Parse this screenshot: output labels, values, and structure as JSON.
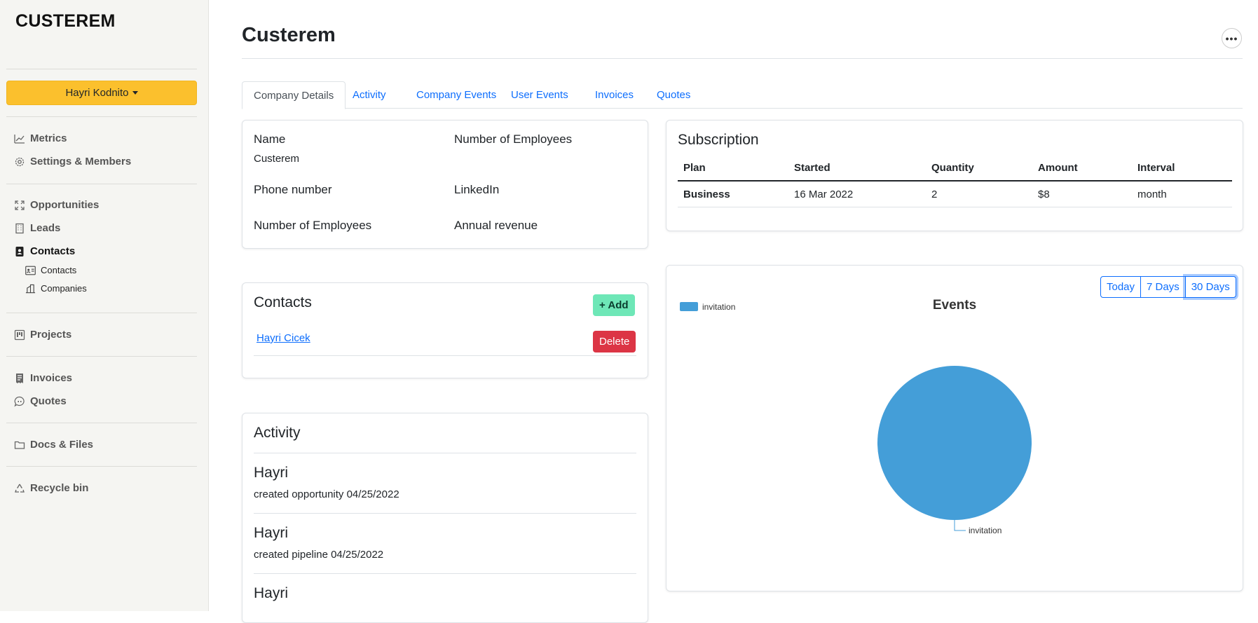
{
  "sidebar": {
    "brand": "CUSTEREM",
    "user_menu": "Hayri Kodnito",
    "items": [
      {
        "label": "Metrics",
        "icon": "chart-line-icon"
      },
      {
        "label": "Settings & Members",
        "icon": "gear-icon"
      },
      {
        "label": "Opportunities",
        "icon": "expand-icon"
      },
      {
        "label": "Leads",
        "icon": "building-icon"
      },
      {
        "label": "Contacts",
        "icon": "contact-book-icon"
      },
      {
        "label": "Projects",
        "icon": "kanban-icon"
      },
      {
        "label": "Invoices",
        "icon": "receipt-icon"
      },
      {
        "label": "Quotes",
        "icon": "chat-quote-icon"
      },
      {
        "label": "Docs & Files",
        "icon": "folder-icon"
      },
      {
        "label": "Recycle bin",
        "icon": "recycle-icon"
      }
    ],
    "sub_items": [
      {
        "label": "Contacts",
        "icon": "person-vcard-icon"
      },
      {
        "label": "Companies",
        "icon": "buildings-icon"
      }
    ]
  },
  "header": {
    "title": "Custerem"
  },
  "tabs": [
    "Company Details",
    "Activity",
    "Company Events",
    "User Events",
    "Invoices",
    "Quotes"
  ],
  "details": {
    "name_label": "Name",
    "name_value": "Custerem",
    "employees_label_1": "Number of Employees",
    "phone_label": "Phone number",
    "linkedin_label": "LinkedIn",
    "employees_label_2": "Number of Employees",
    "revenue_label": "Annual revenue"
  },
  "contacts": {
    "title": "Contacts",
    "add_label": "+ Add",
    "items": [
      {
        "name": "Hayri Cicek",
        "delete_label": "Delete"
      }
    ]
  },
  "activity": {
    "title": "Activity",
    "items": [
      {
        "user": "Hayri",
        "desc": "created opportunity 04/25/2022"
      },
      {
        "user": "Hayri",
        "desc": "created pipeline 04/25/2022"
      },
      {
        "user": "Hayri",
        "desc": ""
      }
    ]
  },
  "subscription": {
    "title": "Subscription",
    "columns": [
      "Plan",
      "Started",
      "Quantity",
      "Amount",
      "Interval"
    ],
    "rows": [
      [
        "Business",
        "16 Mar 2022",
        "2",
        "$8",
        "month"
      ]
    ]
  },
  "events": {
    "ranges": [
      "Today",
      "7 Days",
      "30 Days"
    ],
    "active_range": "30 Days",
    "colors": {
      "accent": "#0d6efd",
      "pie": "#449ed8"
    }
  },
  "chart_data": {
    "type": "pie",
    "title": "Events",
    "categories": [
      "invitation"
    ],
    "values": [
      1
    ],
    "legend": "top-left"
  }
}
